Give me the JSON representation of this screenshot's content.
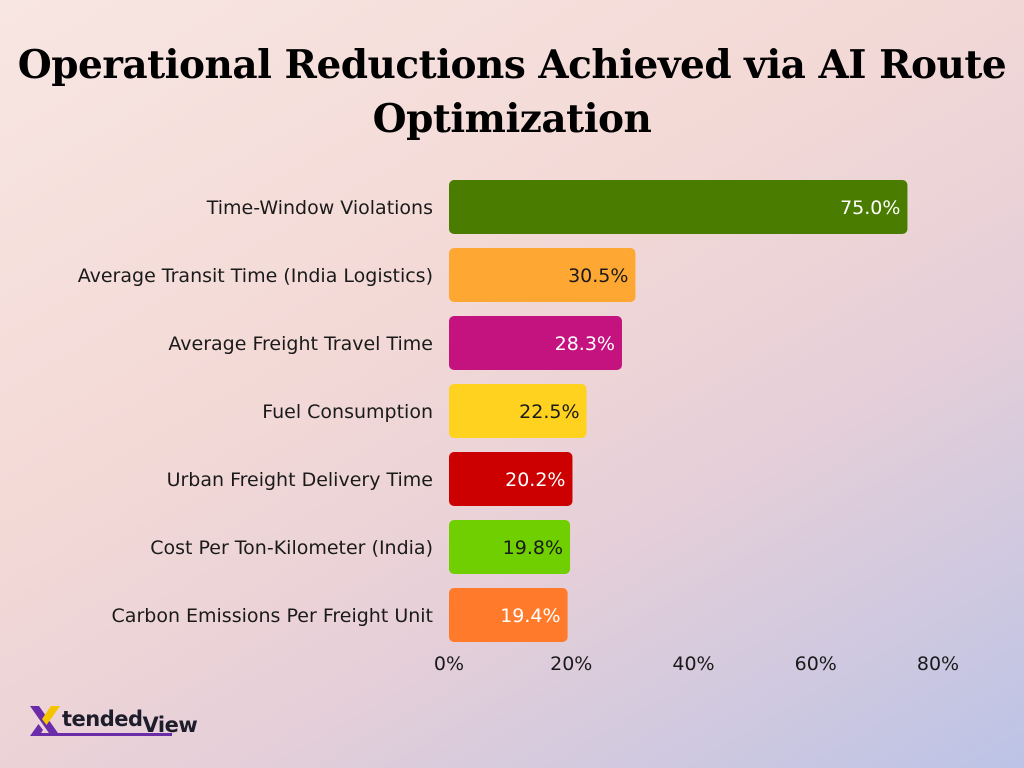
{
  "chart_data": {
    "type": "bar",
    "orientation": "horizontal",
    "title": "Operational Reductions Achieved via AI Route Optimization",
    "categories": [
      "Time-Window Violations",
      "Average Transit Time (India Logistics)",
      "Average Freight Travel Time",
      "Fuel Consumption",
      "Urban Freight Delivery Time",
      "Cost Per Ton-Kilometer (India)",
      "Carbon Emissions Per Freight Unit"
    ],
    "values": [
      75.0,
      30.5,
      28.3,
      22.5,
      20.2,
      19.8,
      19.4
    ],
    "value_labels": [
      "75.0%",
      "30.5%",
      "28.3%",
      "22.5%",
      "20.2%",
      "19.8%",
      "19.4%"
    ],
    "bar_colors": [
      "#4a7c00",
      "#ffa733",
      "#c4127f",
      "#ffd21f",
      "#cc0000",
      "#6fcf00",
      "#ff7a2a"
    ],
    "label_colors": [
      "#ffffff",
      "#1a1a1a",
      "#ffffff",
      "#1a1a1a",
      "#ffffff",
      "#1a1a1a",
      "#ffffff"
    ],
    "xlim": [
      0,
      80
    ],
    "xticks": [
      0,
      20,
      40,
      60,
      80
    ],
    "xtick_labels": [
      "0%",
      "20%",
      "40%",
      "60%",
      "80%"
    ],
    "grid": false,
    "xlabel": "",
    "ylabel": ""
  },
  "brand": {
    "logo_text_1": "tended",
    "logo_text_2": "View",
    "logo_mark": "X"
  }
}
